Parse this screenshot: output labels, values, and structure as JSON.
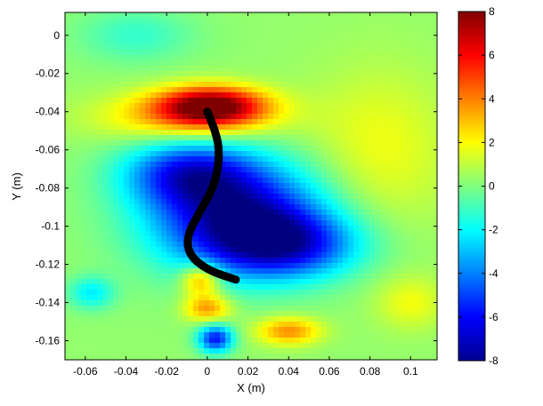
{
  "chart_data": {
    "type": "heatmap",
    "title": "",
    "xlabel": "X (m)",
    "ylabel": "Y (m)",
    "xlim": [
      -0.07,
      0.113
    ],
    "ylim": [
      -0.17,
      0.012
    ],
    "x_ticks": [
      -0.06,
      -0.04,
      -0.02,
      0,
      0.02,
      0.04,
      0.06,
      0.08,
      0.1
    ],
    "x_tick_labels": [
      "-0.06",
      "-0.04",
      "-0.02",
      "0",
      "0.02",
      "0.04",
      "0.06",
      "0.08",
      "0.1"
    ],
    "y_ticks": [
      0,
      -0.02,
      -0.04,
      -0.06,
      -0.08,
      -0.1,
      -0.12,
      -0.14,
      -0.16
    ],
    "y_tick_labels": [
      "0",
      "-0.02",
      "-0.04",
      "-0.06",
      "-0.08",
      "-0.1",
      "-0.12",
      "-0.14",
      "-0.16"
    ],
    "colorbar": {
      "min": -8,
      "max": 8,
      "ticks": [
        8,
        6,
        4,
        2,
        0,
        -2,
        -4,
        -6,
        -8
      ],
      "tick_labels": [
        "8",
        "6",
        "4",
        "2",
        "0",
        "-2",
        "-4",
        "-6",
        "-8"
      ],
      "colormap": "jet"
    },
    "background_value": 0.3,
    "features": [
      {
        "kind": "positive-peak",
        "x": 0.002,
        "y": -0.037,
        "value": 7.5,
        "sx": 0.018,
        "sy": 0.007
      },
      {
        "kind": "positive-band",
        "x": -0.01,
        "y": -0.043,
        "value": 3.0,
        "sx": 0.03,
        "sy": 0.009
      },
      {
        "kind": "negative-core",
        "x": 0.015,
        "y": -0.095,
        "value": -7.5,
        "sx": 0.03,
        "sy": 0.02
      },
      {
        "kind": "negative-lobe",
        "x": 0.04,
        "y": -0.11,
        "value": -5.0,
        "sx": 0.025,
        "sy": 0.012
      },
      {
        "kind": "negative-upper",
        "x": -0.01,
        "y": -0.072,
        "value": -5.0,
        "sx": 0.022,
        "sy": 0.012
      },
      {
        "kind": "negative-lower-spot",
        "x": 0.004,
        "y": -0.159,
        "value": -6.0,
        "sx": 0.006,
        "sy": 0.005
      },
      {
        "kind": "positive-spot",
        "x": -0.003,
        "y": -0.128,
        "value": 4.0,
        "sx": 0.007,
        "sy": 0.006
      },
      {
        "kind": "positive-spot",
        "x": 0.0,
        "y": -0.143,
        "value": 3.5,
        "sx": 0.008,
        "sy": 0.005
      },
      {
        "kind": "positive-spot",
        "x": 0.04,
        "y": -0.155,
        "value": 3.5,
        "sx": 0.011,
        "sy": 0.005
      },
      {
        "kind": "negative-spot",
        "x": -0.057,
        "y": -0.135,
        "value": -2.5,
        "sx": 0.008,
        "sy": 0.006
      },
      {
        "kind": "negative-spot",
        "x": -0.035,
        "y": 0.0,
        "value": -1.5,
        "sx": 0.02,
        "sy": 0.01
      },
      {
        "kind": "positive-region",
        "x": 0.085,
        "y": -0.06,
        "value": 1.5,
        "sx": 0.025,
        "sy": 0.03
      },
      {
        "kind": "positive-spot",
        "x": 0.1,
        "y": -0.14,
        "value": 1.5,
        "sx": 0.012,
        "sy": 0.01
      }
    ],
    "overlay_path": [
      [
        0.0,
        -0.04
      ],
      [
        0.005,
        -0.052
      ],
      [
        0.006,
        -0.066
      ],
      [
        0.003,
        -0.08
      ],
      [
        -0.004,
        -0.093
      ],
      [
        -0.01,
        -0.105
      ],
      [
        -0.009,
        -0.115
      ],
      [
        0.0,
        -0.123
      ],
      [
        0.014,
        -0.128
      ]
    ]
  }
}
